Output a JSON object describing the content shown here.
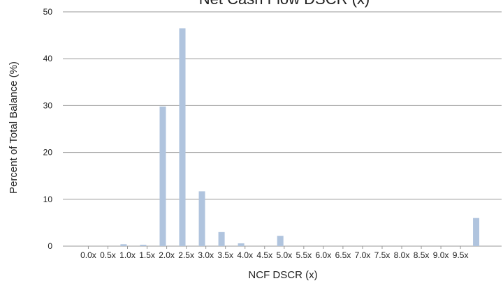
{
  "chart_data": {
    "type": "bar",
    "title": "Net Cash Flow DSCR (x)",
    "xlabel": "NCF DSCR (x)",
    "ylabel": "Percent of Total Balance (%)",
    "ylim": [
      0,
      50
    ],
    "yticks": [
      0,
      10,
      20,
      30,
      40,
      50
    ],
    "grid": true,
    "categories": [
      "0.0x",
      "0.5x",
      "1.0x",
      "1.5x",
      "2.0x",
      "2.5x",
      "3.0x",
      "3.5x",
      "4.0x",
      "4.5x",
      "5.0x",
      "5.5x",
      "6.0x",
      "6.5x",
      "7.0x",
      "7.5x",
      "8.0x",
      "8.5x",
      "9.0x",
      "9.5x"
    ],
    "x_positions": [
      0.0,
      0.5,
      1.0,
      1.5,
      2.0,
      2.5,
      3.0,
      3.5,
      4.0,
      4.5,
      5.0,
      5.5,
      6.0,
      6.5,
      7.0,
      7.5,
      8.0,
      8.5,
      9.0,
      9.5
    ],
    "bars": [
      {
        "x": 0.9,
        "value": 0.4
      },
      {
        "x": 1.4,
        "value": 0.3
      },
      {
        "x": 1.9,
        "value": 29.8
      },
      {
        "x": 2.4,
        "value": 46.5
      },
      {
        "x": 2.9,
        "value": 11.7
      },
      {
        "x": 3.4,
        "value": 3.0
      },
      {
        "x": 3.9,
        "value": 0.6
      },
      {
        "x": 4.9,
        "value": 2.2
      },
      {
        "x": 9.9,
        "value": 6.0
      }
    ],
    "bar_color": "#b0c4de",
    "grid_color": "#999999"
  }
}
